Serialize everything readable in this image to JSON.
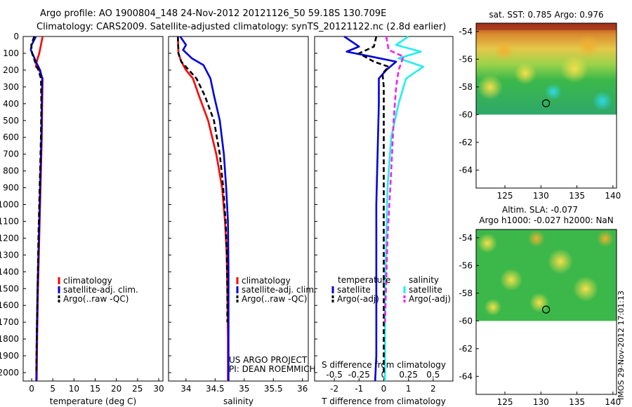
{
  "title": {
    "line1": "Argo profile: AO 1900804_148 24-Nov-2012 20121126_50 59.18S 130.709E",
    "line2": "Climatology: CARS2009. Satellite-adjusted climatology: synTS_20121122.nc (2.8d earlier)"
  },
  "credit": {
    "project": "US ARGO PROJECT",
    "pi": "PI: DEAN ROEMMICH",
    "stamp": "IMOS 29-Nov-2012 17:01:13"
  },
  "colors": {
    "climatology": "#ff0000",
    "satellite": "#0000dd",
    "argo": "#000000",
    "sal_satellite": "#22eeee",
    "sal_argo": "#ee22ee"
  },
  "chart_data": [
    {
      "type": "line",
      "xlabel": "temperature (deg C)",
      "ylabel": "",
      "xlim": [
        -2,
        31
      ],
      "ylim": [
        2050,
        0
      ],
      "xticks": [
        0,
        5,
        10,
        15,
        20,
        25,
        30
      ],
      "yticks": [
        0,
        100,
        200,
        300,
        400,
        500,
        600,
        700,
        800,
        900,
        1000,
        1100,
        1200,
        1300,
        1400,
        1500,
        1600,
        1700,
        1800,
        1900,
        2000
      ],
      "legend": [
        "climatology",
        "satellite-adj. clim.",
        "Argo(..raw -QC)"
      ],
      "legend_position": "center",
      "series": [
        {
          "name": "climatology",
          "x": [
            2.6,
            2.2,
            1.8,
            1.2,
            1.0,
            1.8,
            2.6,
            2.5,
            2.4,
            2.2,
            2.0,
            1.8,
            1.5,
            1.3,
            1.2
          ],
          "y": [
            0,
            50,
            100,
            150,
            180,
            200,
            250,
            400,
            600,
            800,
            1000,
            1200,
            1500,
            1800,
            2050
          ]
        },
        {
          "name": "satellite-adj. clim.",
          "x": [
            1.0,
            0.0,
            -0.2,
            0.5,
            1.2,
            2.0,
            2.5,
            2.4,
            2.3,
            2.1,
            1.9,
            1.7,
            1.4,
            1.2,
            1.1
          ],
          "y": [
            0,
            50,
            80,
            120,
            160,
            200,
            250,
            400,
            600,
            800,
            1000,
            1200,
            1500,
            1800,
            2050
          ]
        },
        {
          "name": "Argo(..raw -QC)",
          "x": [
            0.6,
            -0.1,
            0.1,
            0.8,
            1.6,
            2.2,
            2.3,
            2.2,
            2.0,
            1.8,
            1.6,
            1.4,
            1.2,
            1.1
          ],
          "y": [
            0,
            50,
            100,
            150,
            200,
            250,
            400,
            600,
            800,
            1000,
            1200,
            1500,
            1800,
            2000
          ]
        }
      ]
    },
    {
      "type": "line",
      "xlabel": "salinity",
      "ylabel": "",
      "xlim": [
        33.7,
        36.1
      ],
      "ylim": [
        2050,
        0
      ],
      "xticks": [
        34,
        34.5,
        35,
        35.5,
        36
      ],
      "xtick_labels": [
        "34",
        "34.5",
        "35",
        "35.5",
        "36"
      ],
      "legend": [
        "climatology",
        "satellite-adj. clim.",
        "Argo(..raw -QC)"
      ],
      "legend_position": "center",
      "series": [
        {
          "name": "climatology",
          "x": [
            33.86,
            33.87,
            33.92,
            34.0,
            34.12,
            34.22,
            34.38,
            34.52,
            34.62,
            34.67,
            34.7,
            34.71,
            34.72,
            34.72
          ],
          "y": [
            0,
            100,
            150,
            200,
            250,
            350,
            500,
            700,
            900,
            1100,
            1300,
            1500,
            1800,
            2050
          ]
        },
        {
          "name": "satellite-adj. clim.",
          "x": [
            33.9,
            34.0,
            33.95,
            34.1,
            34.3,
            34.42,
            34.48,
            34.58,
            34.65,
            34.69,
            34.72,
            34.73,
            34.73,
            34.73
          ],
          "y": [
            0,
            50,
            80,
            130,
            170,
            250,
            350,
            500,
            700,
            900,
            1100,
            1400,
            1700,
            2050
          ]
        },
        {
          "name": "Argo(..raw -QC)",
          "x": [
            33.86,
            33.87,
            33.92,
            34.05,
            34.18,
            34.32,
            34.48,
            34.58,
            34.64,
            34.68,
            34.7,
            34.71,
            34.71
          ],
          "y": [
            0,
            100,
            150,
            200,
            250,
            350,
            500,
            700,
            900,
            1100,
            1300,
            1500,
            1700
          ]
        }
      ]
    },
    {
      "type": "line",
      "xlabel": "T difference from climatology",
      "xlabel_top": "S difference from climatology",
      "xlim": [
        -2.8,
        2.8
      ],
      "ylim": [
        2050,
        0
      ],
      "xticks": [
        -2,
        -1,
        0,
        1,
        2
      ],
      "xticks_salinity": [
        "-0.5",
        "-0.25",
        "0",
        "0.25",
        "0.5"
      ],
      "legend": [
        "temperature",
        "satellite",
        "Argo(-adj)",
        "salinity",
        "satellite",
        "Argo(-adj)"
      ],
      "legend_position": "center",
      "series": [
        {
          "name": "temperature satellite",
          "x": [
            -1.6,
            -1.0,
            -1.5,
            -0.5,
            0.5,
            0.1,
            -0.2,
            -0.2,
            -0.25,
            -0.3,
            -0.3,
            -0.3,
            -0.3,
            -0.35
          ],
          "y": [
            0,
            60,
            90,
            120,
            150,
            200,
            250,
            400,
            700,
            1000,
            1300,
            1600,
            1900,
            2050
          ]
        },
        {
          "name": "temperature Argo(-adj)",
          "x": [
            -0.3,
            -0.4,
            -1.0,
            -0.4,
            0.2,
            -0.05,
            0,
            0,
            0,
            0,
            0,
            0,
            0
          ],
          "y": [
            0,
            60,
            100,
            150,
            180,
            220,
            300,
            500,
            800,
            1100,
            1400,
            1700,
            2000
          ]
        },
        {
          "name": "salinity satellite",
          "x": [
            1.0,
            0.5,
            1.5,
            0.6,
            1.6,
            0.9,
            0.6,
            0.3,
            0.15,
            0.1,
            0.05,
            0.05,
            0.05
          ],
          "y": [
            0,
            50,
            90,
            130,
            180,
            250,
            400,
            600,
            900,
            1200,
            1500,
            1800,
            2050
          ]
        },
        {
          "name": "salinity Argo(-adj)",
          "x": [
            0.1,
            0.2,
            0.8,
            0.6,
            0.5,
            0.4,
            0.3,
            0.15,
            0.05
          ],
          "y": [
            0,
            80,
            120,
            200,
            300,
            500,
            800,
            1200,
            1700
          ]
        }
      ]
    },
    {
      "type": "heatmap",
      "title": "sat. SST: 0.785 Argo: 0.976",
      "xlim": [
        121,
        140.5
      ],
      "ylim": [
        -65.3,
        -53.4
      ],
      "xticks": [
        125,
        130,
        135,
        140
      ],
      "yticks": [
        -54,
        -56,
        -58,
        -60,
        -62,
        -64
      ],
      "data_extent_lat": [
        -60,
        -53.4
      ],
      "marker": {
        "lon": 130.709,
        "lat": -59.18
      }
    },
    {
      "type": "heatmap",
      "title": "Altim. SLA: -0.077",
      "subtitle": "Argo h1000: -0.027 h2000: NaN",
      "xlim": [
        121,
        140.5
      ],
      "ylim": [
        -65.3,
        -53.4
      ],
      "xticks": [
        125,
        130,
        135,
        140
      ],
      "yticks": [
        -54,
        -56,
        -58,
        -60,
        -62,
        -64
      ],
      "data_extent_lat": [
        -60,
        -53.4
      ],
      "marker": {
        "lon": 130.709,
        "lat": -59.18
      }
    }
  ]
}
